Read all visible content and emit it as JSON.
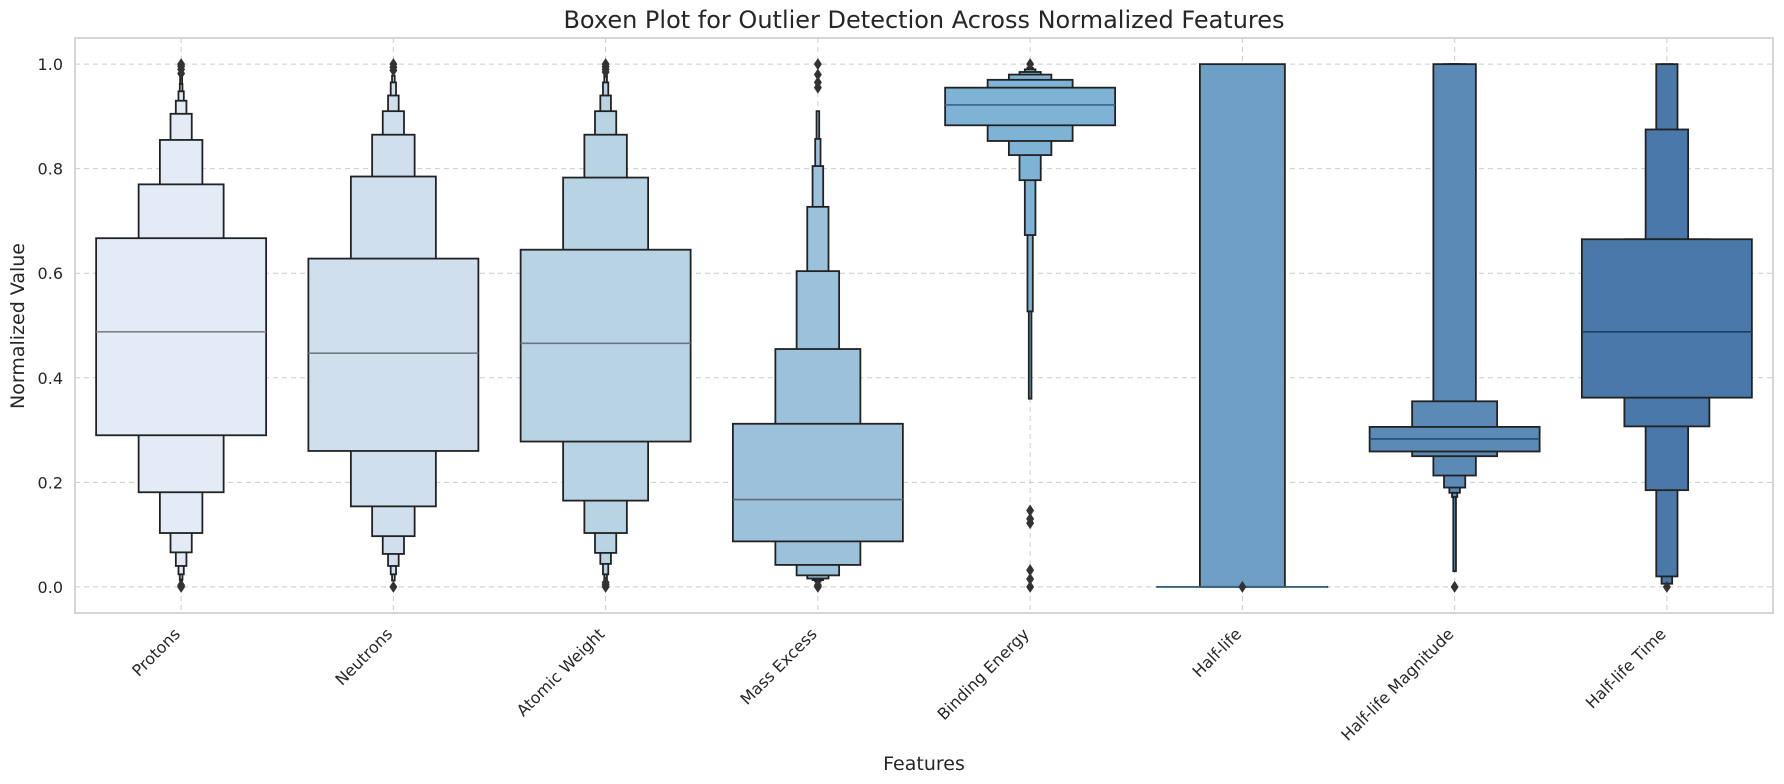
{
  "chart_data": {
    "type": "boxen",
    "title": "Boxen Plot for Outlier Detection Across Normalized Features",
    "xlabel": "Features",
    "ylabel": "Normalized Value",
    "ylim": [
      -0.05,
      1.05
    ],
    "yticks": [
      "0.0",
      "0.2",
      "0.4",
      "0.6",
      "0.8",
      "1.0"
    ],
    "grid": true,
    "categories": [
      "Protons",
      "Neutrons",
      "Atomic Weight",
      "Mass Excess",
      "Binding Energy",
      "Half-life",
      "Half-life Magnitude",
      "Half-life Time"
    ],
    "colors": [
      "#e3ecf6",
      "#cfdfed",
      "#b8d3e3",
      "#9cc2db",
      "#7eb3d6",
      "#6e9fc5",
      "#5a8ab5",
      "#4a78a8"
    ],
    "median_colors": [
      "#808080",
      "#737b85",
      "#6a7580",
      "#606b76",
      "#3d6486",
      "#3e6d93",
      "#1e4f78",
      "#1a3f66"
    ],
    "series": [
      {
        "name": "Protons",
        "median": 0.488,
        "levels": [
          [
            0.29,
            0.667
          ],
          [
            0.181,
            0.77
          ],
          [
            0.103,
            0.855
          ],
          [
            0.066,
            0.905
          ],
          [
            0.04,
            0.93
          ],
          [
            0.024,
            0.948
          ],
          [
            0.014,
            0.962
          ],
          [
            0.008,
            0.975
          ]
        ],
        "outliers": [
          0.0,
          0.003,
          0.982,
          0.99,
          0.996,
          1.0
        ]
      },
      {
        "name": "Neutrons",
        "median": 0.447,
        "levels": [
          [
            0.26,
            0.628
          ],
          [
            0.154,
            0.785
          ],
          [
            0.097,
            0.865
          ],
          [
            0.063,
            0.91
          ],
          [
            0.04,
            0.94
          ],
          [
            0.024,
            0.965
          ],
          [
            0.012,
            0.978
          ]
        ],
        "outliers": [
          0.0,
          0.988,
          0.994,
          1.0
        ]
      },
      {
        "name": "Atomic Weight",
        "median": 0.466,
        "levels": [
          [
            0.278,
            0.645
          ],
          [
            0.165,
            0.783
          ],
          [
            0.103,
            0.865
          ],
          [
            0.065,
            0.91
          ],
          [
            0.044,
            0.94
          ],
          [
            0.024,
            0.965
          ],
          [
            0.012,
            0.978
          ]
        ],
        "outliers": [
          0.0,
          0.004,
          0.008,
          0.985,
          0.99,
          0.995,
          1.0
        ]
      },
      {
        "name": "Mass Excess",
        "median": 0.167,
        "levels": [
          [
            0.087,
            0.312
          ],
          [
            0.042,
            0.455
          ],
          [
            0.022,
            0.604
          ],
          [
            0.016,
            0.727
          ],
          [
            0.013,
            0.805
          ],
          [
            0.01,
            0.857
          ],
          [
            0.006,
            0.91
          ]
        ],
        "outliers": [
          0.0,
          0.003,
          0.955,
          0.965,
          0.98,
          1.0
        ]
      },
      {
        "name": "Binding Energy",
        "median": 0.922,
        "levels": [
          [
            0.883,
            0.955
          ],
          [
            0.853,
            0.97
          ],
          [
            0.826,
            0.98
          ],
          [
            0.778,
            0.985
          ],
          [
            0.673,
            0.99
          ],
          [
            0.527,
            0.993
          ],
          [
            0.36,
            0.995
          ]
        ],
        "outliers": [
          0.0,
          0.015,
          0.032,
          0.122,
          0.13,
          0.146,
          1.0
        ]
      },
      {
        "name": "Half-life",
        "median": 0.0,
        "levels": [
          [
            0.0,
            0.0
          ],
          [
            0.0,
            1.0
          ]
        ],
        "outliers": [
          0.0
        ]
      },
      {
        "name": "Half-life Magnitude",
        "median": 0.283,
        "levels": [
          [
            0.259,
            0.306
          ],
          [
            0.25,
            0.355
          ],
          [
            0.213,
            1.0
          ],
          [
            0.19,
            1.0
          ],
          [
            0.18,
            1.0
          ],
          [
            0.172,
            1.0
          ],
          [
            0.03,
            1.0
          ]
        ],
        "outliers": [
          0.0
        ]
      },
      {
        "name": "Half-life Time",
        "median": 0.488,
        "levels": [
          [
            0.362,
            0.665
          ],
          [
            0.307,
            0.665
          ],
          [
            0.185,
            0.875
          ],
          [
            0.02,
            1.0
          ],
          [
            0.006,
            1.0
          ]
        ],
        "outliers": [
          0.0
        ]
      }
    ]
  }
}
